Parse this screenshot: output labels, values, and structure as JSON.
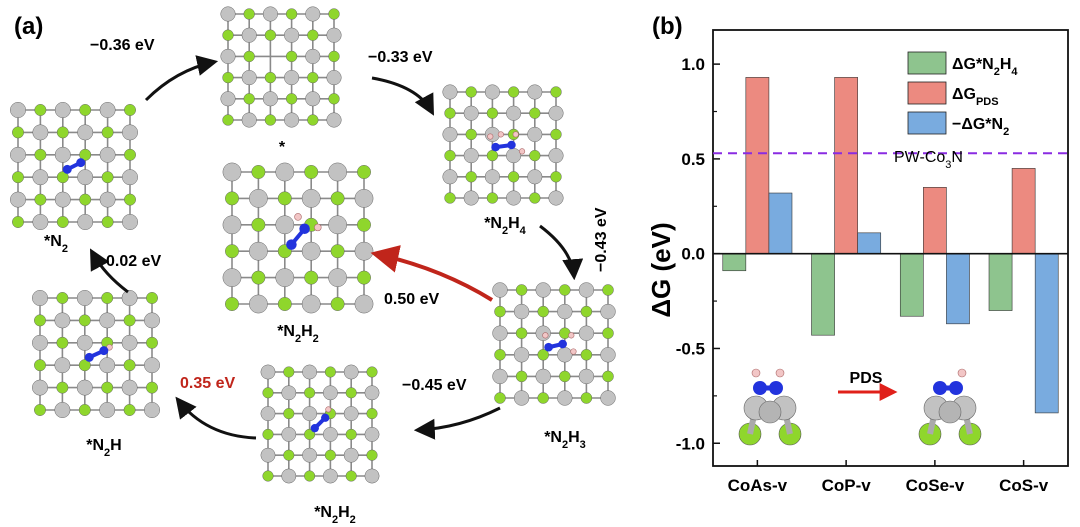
{
  "panel_a": {
    "label": "(a)",
    "states": {
      "bare": "*",
      "n2h4": [
        "*N",
        "2",
        "H",
        "4"
      ],
      "n2h3": [
        "*N",
        "2",
        "H",
        "3"
      ],
      "n2h2_center": [
        "*N",
        "2",
        "H",
        "2"
      ],
      "n2h2_bottom": [
        "*N",
        "2",
        "H",
        "2"
      ],
      "n2h": [
        "*N",
        "2",
        "H"
      ],
      "n2": [
        "*N",
        "2"
      ]
    },
    "energies": {
      "to_n2h4": "−0.33 eV",
      "to_n2h3": "−0.43 eV",
      "to_n2h2_bottom": "−0.45 eV",
      "to_n2h2_center": "0.50 eV",
      "to_n2h": "0.35 eV",
      "to_n2": "0.02 eV",
      "to_bare": "−0.36 eV"
    },
    "colors": {
      "normal_arrow": "#111111",
      "highlight": "#c0251b",
      "co_atom": "#c2c2c2",
      "x_atom": "#8fd62c",
      "n_atom": "#2233dd",
      "h_atom": "#f2c6c6"
    }
  },
  "panel_b": {
    "label": "(b)",
    "reference_label": [
      "PW-Co",
      "3",
      "N"
    ],
    "pds_label": "PDS",
    "colors": {
      "series1": "#8ec48e",
      "series2": "#ec8a80",
      "series3": "#79abdf",
      "reference": "#8a2be2",
      "pds_arrow": "#e0201a"
    }
  },
  "chart_data": {
    "type": "bar",
    "categories": [
      "CoAs-v",
      "CoP-v",
      "CoSe-v",
      "CoS-v"
    ],
    "series": [
      {
        "name": "ΔG*N2H4",
        "values": [
          -0.09,
          -0.43,
          -0.33,
          -0.3
        ]
      },
      {
        "name": "ΔGPDS",
        "values": [
          0.93,
          0.93,
          0.35,
          0.45
        ]
      },
      {
        "name": "−ΔG*N2",
        "values": [
          0.32,
          0.11,
          -0.37,
          -0.84
        ]
      }
    ],
    "legend_parts": [
      [
        "ΔG*N",
        "2",
        "H",
        "4"
      ],
      [
        "ΔG",
        "PDS"
      ],
      [
        "−ΔG*N",
        "2"
      ]
    ],
    "reference_line": 0.53,
    "ylabel": "ΔG (eV)",
    "ylim": [
      -1.12,
      1.18
    ],
    "yticks": [
      -1.0,
      -0.5,
      0.0,
      0.5,
      1.0
    ],
    "ytick_labels": [
      "-1.0",
      "-0.5",
      "0.0",
      "0.5",
      "1.0"
    ],
    "legend_position": "top-right",
    "grid": false
  }
}
